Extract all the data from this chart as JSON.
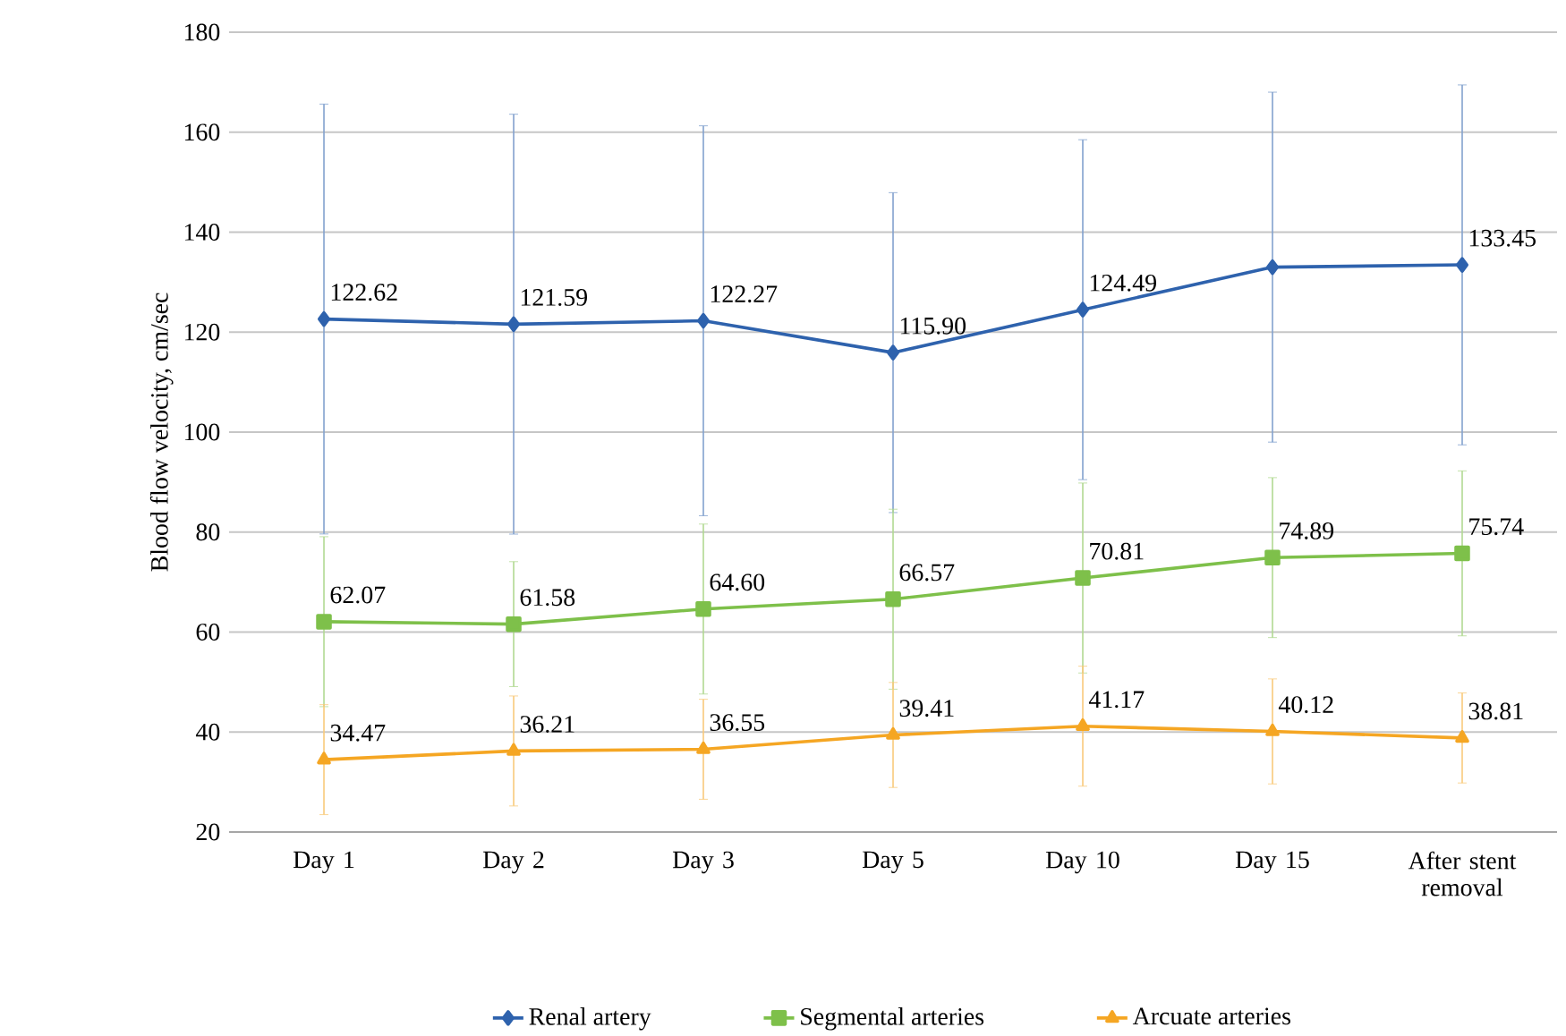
{
  "chart_data": {
    "type": "line",
    "ylabel": "Blood flow velocity, cm/sec",
    "categories": [
      "Day 1",
      "Day 2",
      "Day 3",
      "Day 5",
      "Day 10",
      "Day 15",
      "After stent removal"
    ],
    "series": [
      {
        "name": "Renal artery",
        "color": "#2e62ad",
        "marker": "diamond",
        "values": [
          122.62,
          121.59,
          122.27,
          115.9,
          124.49,
          133,
          133.45
        ],
        "value_labels": [
          "122.62",
          "121.59",
          "122.27",
          "115.90",
          "124.49",
          null,
          "133.45"
        ],
        "errors": [
          43,
          42,
          39,
          32,
          34,
          35,
          36
        ]
      },
      {
        "name": "Segmental arteries",
        "color": "#7ec04a",
        "marker": "square",
        "values": [
          62.07,
          61.58,
          64.6,
          66.57,
          70.81,
          74.89,
          75.74
        ],
        "value_labels": [
          "62.07",
          "61.58",
          "64.60",
          "66.57",
          "70.81",
          "74.89",
          "75.74"
        ],
        "errors": [
          17,
          12.5,
          17,
          18,
          19,
          16,
          16.5
        ]
      },
      {
        "name": "Arcuate arteries",
        "color": "#f5a623",
        "marker": "triangle",
        "values": [
          34.47,
          36.21,
          36.55,
          39.41,
          41.17,
          40.12,
          38.81
        ],
        "value_labels": [
          "34.47",
          "36.21",
          "36.55",
          "39.41",
          "41.17",
          "40.12",
          "38.81"
        ],
        "errors": [
          11,
          11,
          10,
          10.5,
          12,
          10.5,
          9
        ]
      }
    ],
    "ylim": [
      20,
      180
    ],
    "yticks": [
      20,
      40,
      60,
      80,
      100,
      120,
      140,
      160,
      180
    ],
    "grid": "y",
    "legend": "bottom"
  }
}
